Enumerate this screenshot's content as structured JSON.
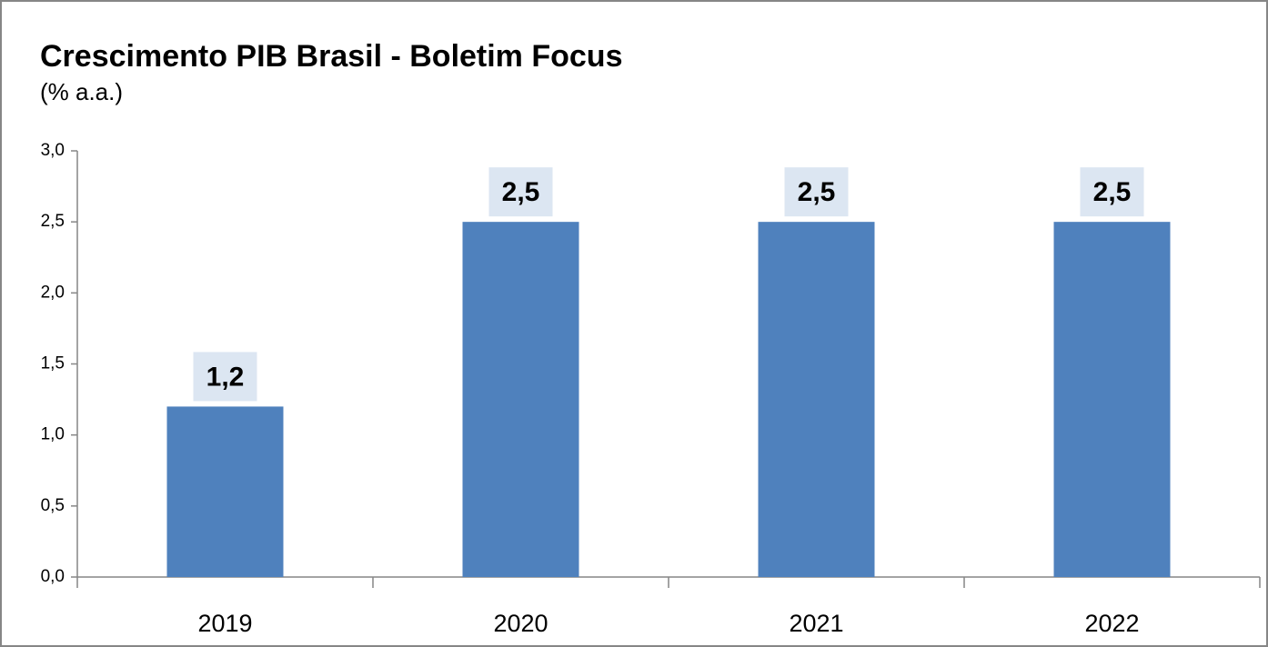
{
  "chart_data": {
    "type": "bar",
    "title": "Crescimento PIB Brasil - Boletim Focus",
    "subtitle": "(% a.a.)",
    "categories": [
      "2019",
      "2020",
      "2021",
      "2022"
    ],
    "values": [
      1.2,
      2.5,
      2.5,
      2.5
    ],
    "value_labels": [
      "1,2",
      "2,5",
      "2,5",
      "2,5"
    ],
    "color": "#4f81bd",
    "ylim": [
      0,
      3
    ],
    "yticks": [
      {
        "value": 0,
        "label": "0,0"
      },
      {
        "value": 0.5,
        "label": "0,5"
      },
      {
        "value": 1,
        "label": "1,0"
      },
      {
        "value": 1.5,
        "label": "1,5"
      },
      {
        "value": 2,
        "label": "2,0"
      },
      {
        "value": 2.5,
        "label": "2,5"
      },
      {
        "value": 3,
        "label": "3,0"
      }
    ],
    "grid": false
  }
}
